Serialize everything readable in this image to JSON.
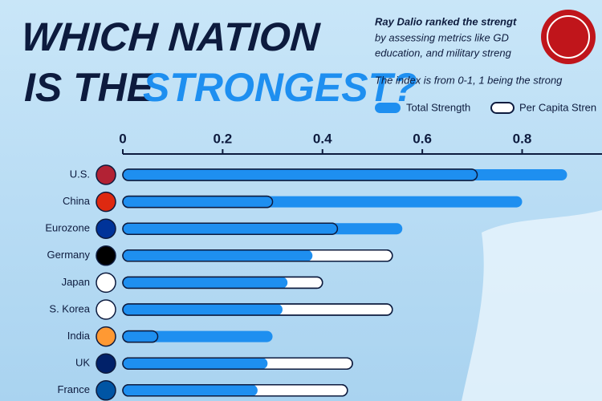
{
  "chart_data": {
    "type": "bar",
    "orientation": "horizontal",
    "title_line1": "WHICH NATION",
    "title_line2": "IS THE",
    "title_highlight": "STRONGEST?",
    "description": [
      "Ray Dalio ranked the strengt",
      "by assessing metrics like GD",
      "education, and military streng"
    ],
    "note": "The index is from 0-1, 1 being the strong",
    "categories": [
      "U.S.",
      "China",
      "Eurozone",
      "Germany",
      "Japan",
      "S. Korea",
      "India",
      "UK",
      "France"
    ],
    "series": [
      {
        "name": "Total Strength",
        "color": "#1e8ff0",
        "values": [
          0.89,
          0.8,
          0.56,
          0.38,
          0.33,
          0.32,
          0.3,
          0.29,
          0.27
        ]
      },
      {
        "name": "Per Capita Stren",
        "color": "#0d1b3e",
        "values": [
          0.71,
          0.3,
          0.43,
          0.54,
          0.4,
          0.54,
          0.07,
          0.46,
          0.45
        ]
      }
    ],
    "xlim": [
      0,
      0.96
    ],
    "xticks": [
      0,
      0.2,
      0.4,
      0.6,
      0.8
    ]
  }
}
